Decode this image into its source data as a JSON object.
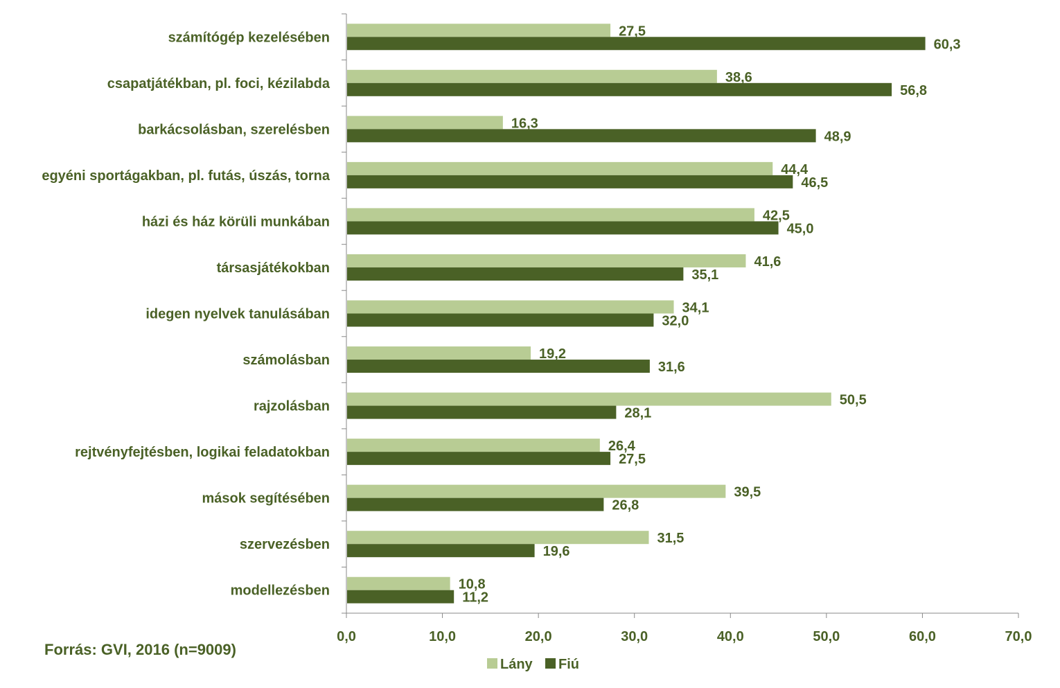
{
  "source_text": "Forrás: GVI, 2016 (n=9009)",
  "colors": {
    "lany": "#b8cc94",
    "fiu": "#4a6126",
    "text": "#4a6126",
    "axis": "#888888"
  },
  "chart_data": {
    "type": "bar",
    "orientation": "horizontal",
    "categories": [
      "számítógép kezelésében",
      "csapatjátékban, pl. foci, kézilabda",
      "barkácsolásban, szerelésben",
      "egyéni sportágakban, pl. futás, úszás, torna",
      "házi és ház körüli munkában",
      "társasjátékokban",
      "idegen nyelvek tanulásában",
      "számolásban",
      "rajzolásban",
      "rejtvényfejtésben, logikai feladatokban",
      "mások segítésében",
      "szervezésben",
      "modellezésben"
    ],
    "series": [
      {
        "name": "Lány",
        "values": [
          27.5,
          38.6,
          16.3,
          44.4,
          42.5,
          41.6,
          34.1,
          19.2,
          50.5,
          26.4,
          39.5,
          31.5,
          10.8
        ],
        "labels": [
          "27,5",
          "38,6",
          "16,3",
          "44,4",
          "42,5",
          "41,6",
          "34,1",
          "19,2",
          "50,5",
          "26,4",
          "39,5",
          "31,5",
          "10,8"
        ]
      },
      {
        "name": "Fiú",
        "values": [
          60.3,
          56.8,
          48.9,
          46.5,
          45.0,
          35.1,
          32.0,
          31.6,
          28.1,
          27.5,
          26.8,
          19.6,
          11.2
        ],
        "labels": [
          "60,3",
          "56,8",
          "48,9",
          "46,5",
          "45,0",
          "35,1",
          "32,0",
          "31,6",
          "28,1",
          "27,5",
          "26,8",
          "19,6",
          "11,2"
        ]
      }
    ],
    "xlim": [
      0,
      70
    ],
    "xticks": [
      "0,0",
      "10,0",
      "20,0",
      "30,0",
      "40,0",
      "50,0",
      "60,0",
      "70,0"
    ],
    "grid": false,
    "legend_position": "bottom"
  }
}
